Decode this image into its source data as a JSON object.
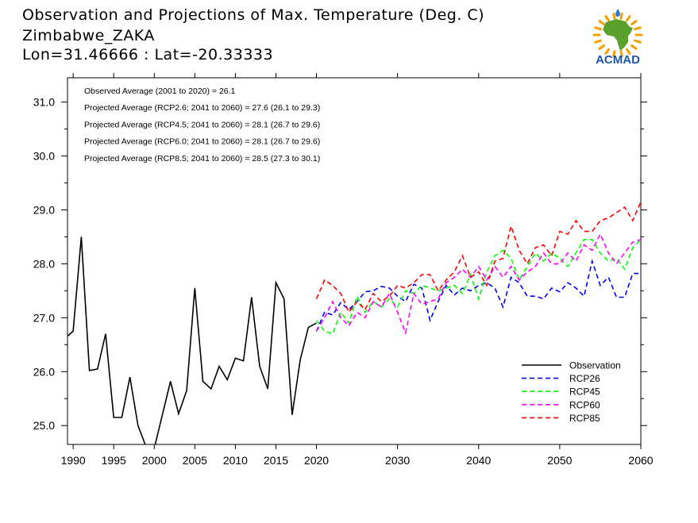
{
  "header": {
    "title": "Observation and Projections of Max. Temperature (Deg. C)",
    "location": "Zimbabwe_ZAKA",
    "coords": "Lon=31.46666 : Lat=-20.33333"
  },
  "logo": {
    "text": "ACMAD",
    "icon": "africa-sun-logo-icon",
    "colors": {
      "land": "#5aa02c",
      "rays": "#f2a000",
      "text": "#1f57a4",
      "drop": "#2a7ad1"
    }
  },
  "chart_data": {
    "type": "line",
    "title": "",
    "xlabel": "",
    "ylabel": "",
    "xlim": [
      1989.3,
      2060
    ],
    "ylim": [
      24.65,
      31.45
    ],
    "grid": false,
    "legend_position": "bottom-right",
    "x_ticks": [
      {
        "value": 1990,
        "label": "1990"
      },
      {
        "value": 1995,
        "label": "1995"
      },
      {
        "value": 2000,
        "label": "2000"
      },
      {
        "value": 2005,
        "label": "2005"
      },
      {
        "value": 2010,
        "label": "2010"
      },
      {
        "value": 2015,
        "label": "2015"
      },
      {
        "value": 2020,
        "label": "2020"
      },
      {
        "value": 2030,
        "label": "2030"
      },
      {
        "value": 2040,
        "label": "2040"
      },
      {
        "value": 2050,
        "label": "2050"
      },
      {
        "value": 2060,
        "label": "2060"
      }
    ],
    "y_ticks": [
      {
        "value": 25,
        "label": "25.0"
      },
      {
        "value": 26,
        "label": "26.0"
      },
      {
        "value": 27,
        "label": "27.0"
      },
      {
        "value": 28,
        "label": "28.0"
      },
      {
        "value": 29,
        "label": "29.0"
      },
      {
        "value": 30,
        "label": "30.0"
      },
      {
        "value": 31,
        "label": "31.0"
      }
    ],
    "annotations": [
      "Observed Average (2001 to 2020) = 26.1",
      "Projected Average (RCP2.6; 2041 to 2060) = 27.6 (26.1 to 29.3)",
      "Projected Average (RCP4.5; 2041 to 2060) = 28.1 (26.7 to 29.6)",
      "Projected Average (RCP6.0; 2041 to 2060) = 28.1 (26.7 to 29.6)",
      "Projected Average (RCP8.5; 2041 to 2060) = 28.5 (27.3 to 30.1)"
    ],
    "series": [
      {
        "name": "Observation",
        "color": "#000000",
        "dashed": false,
        "x": [
          1989,
          1990,
          1991,
          1992,
          1993,
          1994,
          1995,
          1996,
          1997,
          1998,
          1999,
          2000,
          2001,
          2002,
          2003,
          2004,
          2005,
          2006,
          2007,
          2008,
          2009,
          2010,
          2011,
          2012,
          2013,
          2014,
          2015,
          2016,
          2017,
          2018,
          2019,
          2020
        ],
        "y": [
          26.62,
          26.75,
          28.5,
          26.02,
          26.05,
          26.7,
          25.15,
          25.15,
          25.9,
          25.0,
          24.6,
          24.58,
          25.2,
          25.82,
          25.22,
          25.65,
          27.55,
          25.82,
          25.68,
          26.1,
          25.85,
          26.25,
          26.2,
          27.38,
          26.1,
          25.68,
          27.65,
          27.35,
          25.2,
          26.22,
          26.82,
          26.9
        ]
      },
      {
        "name": "RCP26",
        "color": "#0000ff",
        "dashed": true,
        "x": [
          2020,
          2021,
          2022,
          2023,
          2024,
          2025,
          2026,
          2027,
          2028,
          2029,
          2030,
          2031,
          2032,
          2033,
          2034,
          2035,
          2036,
          2037,
          2038,
          2039,
          2040,
          2041,
          2042,
          2043,
          2044,
          2045,
          2046,
          2047,
          2048,
          2049,
          2050,
          2051,
          2052,
          2053,
          2054,
          2055,
          2056,
          2057,
          2058,
          2059,
          2060
        ],
        "y": [
          26.75,
          27.1,
          27.05,
          27.28,
          27.15,
          27.3,
          27.48,
          27.5,
          27.58,
          27.55,
          27.4,
          27.3,
          27.62,
          27.55,
          26.95,
          27.3,
          27.6,
          27.42,
          27.55,
          27.5,
          27.6,
          27.65,
          27.55,
          27.2,
          27.75,
          27.65,
          27.4,
          27.4,
          27.35,
          27.55,
          27.48,
          27.65,
          27.55,
          27.4,
          28.05,
          27.6,
          27.75,
          27.38,
          27.38,
          27.82,
          27.82
        ]
      },
      {
        "name": "RCP45",
        "color": "#00ff00",
        "dashed": true,
        "x": [
          2020,
          2021,
          2022,
          2023,
          2024,
          2025,
          2026,
          2027,
          2028,
          2029,
          2030,
          2031,
          2032,
          2033,
          2034,
          2035,
          2036,
          2037,
          2038,
          2039,
          2040,
          2041,
          2042,
          2043,
          2044,
          2045,
          2046,
          2047,
          2048,
          2049,
          2050,
          2051,
          2052,
          2053,
          2054,
          2055,
          2056,
          2057,
          2058,
          2059,
          2060
        ],
        "y": [
          26.95,
          26.75,
          26.7,
          27.1,
          26.9,
          27.4,
          27.1,
          27.3,
          27.2,
          27.35,
          27.2,
          27.5,
          27.45,
          27.6,
          27.55,
          27.5,
          27.55,
          27.6,
          27.45,
          27.8,
          27.35,
          27.85,
          28.15,
          28.25,
          28.1,
          27.7,
          27.95,
          28.2,
          28.05,
          28.2,
          28.1,
          27.95,
          28.2,
          28.45,
          28.45,
          28.2,
          28.05,
          28.1,
          27.9,
          28.3,
          28.45
        ]
      },
      {
        "name": "RCP60",
        "color": "#ff00ff",
        "dashed": true,
        "x": [
          2020,
          2021,
          2022,
          2023,
          2024,
          2025,
          2026,
          2027,
          2028,
          2029,
          2030,
          2031,
          2032,
          2033,
          2034,
          2035,
          2036,
          2037,
          2038,
          2039,
          2040,
          2041,
          2042,
          2043,
          2044,
          2045,
          2046,
          2047,
          2048,
          2049,
          2050,
          2051,
          2052,
          2053,
          2054,
          2055,
          2056,
          2057,
          2058,
          2059,
          2060
        ],
        "y": [
          26.75,
          27.0,
          27.3,
          27.0,
          26.85,
          27.1,
          27.0,
          27.3,
          27.2,
          27.45,
          27.1,
          26.72,
          27.45,
          27.25,
          27.3,
          27.35,
          27.65,
          27.75,
          27.9,
          27.75,
          27.95,
          27.7,
          27.95,
          27.75,
          27.95,
          27.7,
          27.85,
          27.95,
          28.2,
          28.0,
          28.0,
          28.2,
          28.05,
          28.35,
          28.25,
          28.55,
          28.2,
          28.0,
          28.2,
          28.4,
          28.45
        ]
      },
      {
        "name": "RCP85",
        "color": "#ff0000",
        "dashed": true,
        "x": [
          2020,
          2021,
          2022,
          2023,
          2024,
          2025,
          2026,
          2027,
          2028,
          2029,
          2030,
          2031,
          2032,
          2033,
          2034,
          2035,
          2036,
          2037,
          2038,
          2039,
          2040,
          2041,
          2042,
          2043,
          2044,
          2045,
          2046,
          2047,
          2048,
          2049,
          2050,
          2051,
          2052,
          2053,
          2054,
          2055,
          2056,
          2057,
          2058,
          2059,
          2060
        ],
        "y": [
          27.35,
          27.7,
          27.6,
          27.45,
          27.1,
          27.3,
          27.15,
          27.45,
          27.3,
          27.4,
          27.6,
          27.55,
          27.65,
          27.8,
          27.8,
          27.5,
          27.7,
          27.85,
          28.15,
          27.75,
          27.85,
          27.6,
          28.05,
          28.1,
          28.7,
          28.25,
          28.0,
          28.3,
          28.35,
          28.15,
          28.6,
          28.55,
          28.8,
          28.6,
          28.6,
          28.8,
          28.85,
          28.95,
          29.05,
          28.8,
          29.15
        ]
      }
    ]
  }
}
